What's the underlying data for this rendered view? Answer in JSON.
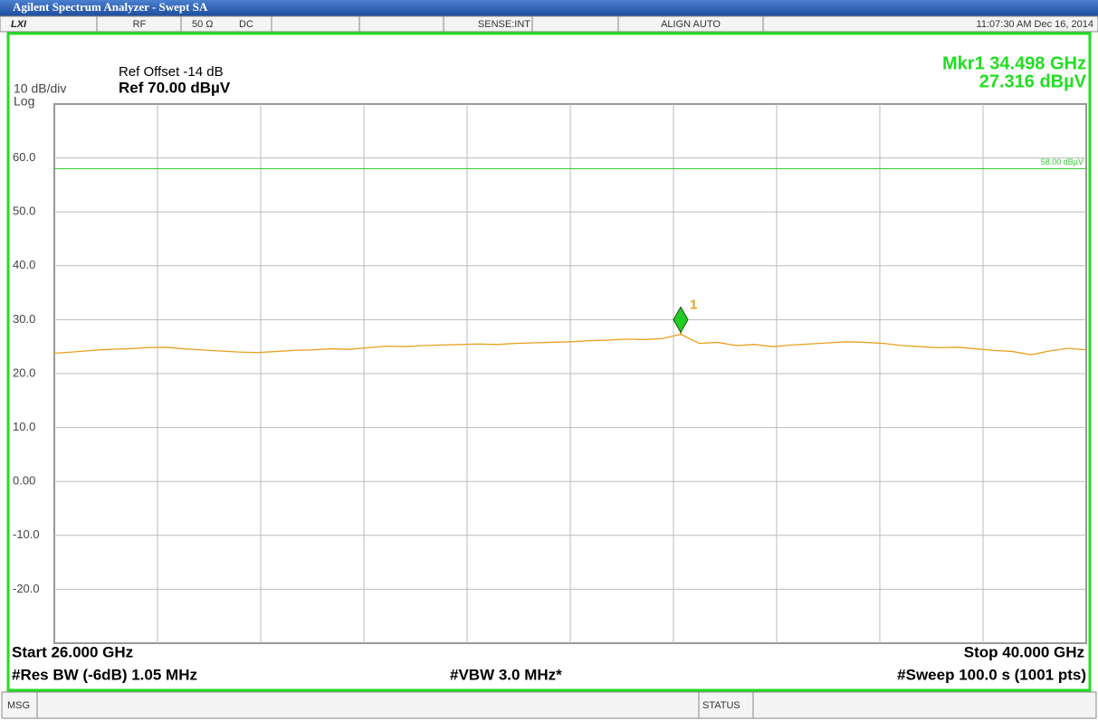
{
  "window": {
    "title": "Agilent Spectrum Analyzer - Swept SA"
  },
  "info_bar": {
    "logo": "LXI",
    "rf": "RF",
    "impedance": "50 Ω",
    "coupling": "DC",
    "sense": "SENSE:INT",
    "align": "ALIGN AUTO",
    "datetime": "11:07:30 AM Dec 16, 2014"
  },
  "header": {
    "scale": "10 dB/div",
    "scale_type": "Log",
    "ref_offset": "Ref Offset -14 dB",
    "ref_level": "Ref 70.00 dBµV",
    "marker_freq": "Mkr1 34.498 GHz",
    "marker_level": "27.316 dBµV"
  },
  "footer": {
    "start": "Start 26.000 GHz",
    "stop": "Stop 40.000 GHz",
    "rbw": "#Res BW (-6dB) 1.05 MHz",
    "vbw": "#VBW 3.0 MHz*",
    "sweep": "#Sweep  100.0 s (1001 pts)"
  },
  "status_bar": {
    "msg": "MSG",
    "status": "STATUS"
  },
  "chart_data": {
    "type": "line",
    "color": "#e8a020",
    "grid": true,
    "xlim": [
      26,
      40
    ],
    "ylim": [
      -30,
      70
    ],
    "yticks": [
      {
        "value": 60,
        "label": "60.0"
      },
      {
        "value": 50,
        "label": "50.0"
      },
      {
        "value": 40,
        "label": "40.0"
      },
      {
        "value": 30,
        "label": "30.0"
      },
      {
        "value": 20,
        "label": "20.0"
      },
      {
        "value": 10,
        "label": "10.0"
      },
      {
        "value": 0,
        "label": "0.00"
      },
      {
        "value": -10,
        "label": "-10.0"
      },
      {
        "value": -20,
        "label": "-20.0"
      }
    ],
    "display_line": {
      "value": 58,
      "label": "58.00 dBµV",
      "color": "#33cc33"
    },
    "marker": {
      "name": "1",
      "x": 34.498,
      "value": 27.316,
      "color": "#22cc22"
    },
    "x": [
      26,
      26.25,
      26.5,
      26.75,
      27,
      27.25,
      27.5,
      27.75,
      28,
      28.25,
      28.5,
      28.75,
      29,
      29.25,
      29.5,
      29.75,
      30,
      30.25,
      30.5,
      30.75,
      31,
      31.25,
      31.5,
      31.75,
      32,
      32.25,
      32.5,
      32.75,
      33,
      33.25,
      33.5,
      33.75,
      34,
      34.25,
      34.5,
      34.75,
      35,
      35.25,
      35.5,
      35.75,
      36,
      36.25,
      36.5,
      36.75,
      37,
      37.25,
      37.5,
      37.75,
      38,
      38.25,
      38.5,
      38.75,
      39,
      39.25,
      39.5,
      39.75,
      40
    ],
    "values": [
      23.8,
      24.0,
      24.3,
      24.5,
      24.6,
      24.8,
      24.9,
      24.6,
      24.4,
      24.2,
      24.0,
      23.9,
      24.1,
      24.3,
      24.4,
      24.6,
      24.5,
      24.8,
      25.1,
      25.0,
      25.2,
      25.3,
      25.4,
      25.5,
      25.4,
      25.6,
      25.7,
      25.8,
      25.9,
      26.1,
      26.2,
      26.4,
      26.3,
      26.5,
      27.3,
      25.6,
      25.8,
      25.2,
      25.4,
      25.0,
      25.3,
      25.5,
      25.7,
      25.9,
      25.8,
      25.6,
      25.2,
      25.0,
      24.8,
      24.9,
      24.6,
      24.3,
      24.1,
      23.5,
      24.2,
      24.7,
      24.4
    ]
  }
}
